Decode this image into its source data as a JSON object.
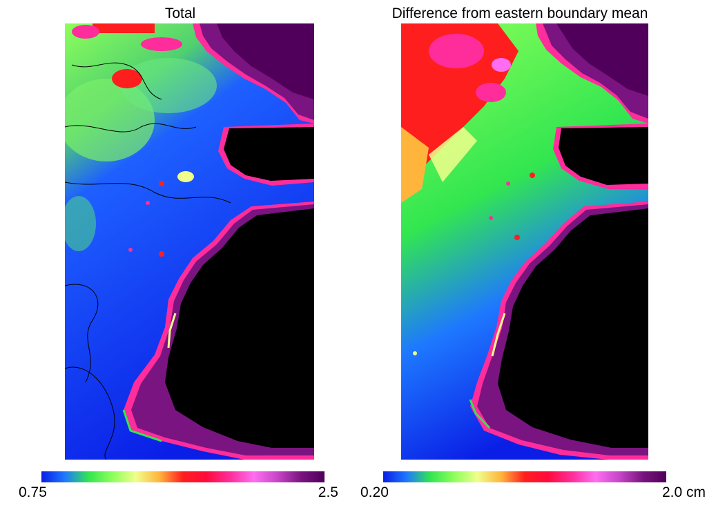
{
  "panels": [
    {
      "title": "Total",
      "colorbar": {
        "min_label": "0.75",
        "max_label": "2.5"
      }
    },
    {
      "title": "Difference from eastern boundary mean",
      "colorbar": {
        "min_label": "0.20",
        "max_label": "2.0 cm"
      }
    }
  ],
  "colormap": [
    "#0a1ee6",
    "#1e78ff",
    "#32e650",
    "#8cff5a",
    "#f0ff8c",
    "#ffb43c",
    "#ff1e1e",
    "#ff0a3c",
    "#ff2d9b",
    "#ff6ef0",
    "#c846c8",
    "#7a1480",
    "#50005a"
  ],
  "colors": {
    "land": "#000000",
    "background": "#ffffff"
  }
}
